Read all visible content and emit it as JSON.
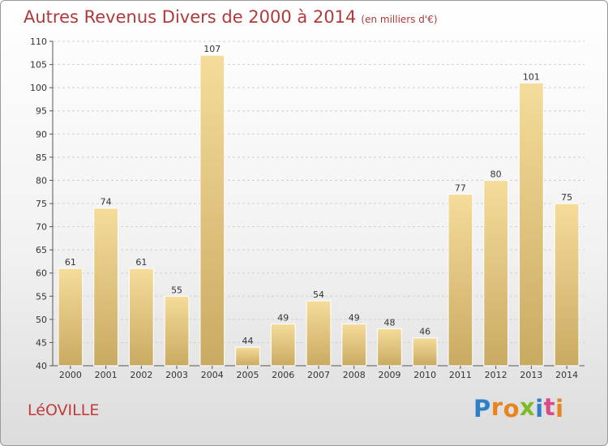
{
  "chart_data": {
    "type": "bar",
    "title": "Autres Revenus Divers de 2000 à 2014",
    "subtitle": "(en milliers d'€)",
    "categories": [
      "2000",
      "2001",
      "2002",
      "2003",
      "2004",
      "2005",
      "2006",
      "2007",
      "2008",
      "2009",
      "2010",
      "2011",
      "2012",
      "2013",
      "2014"
    ],
    "values": [
      61,
      74,
      61,
      55,
      107,
      44,
      49,
      54,
      49,
      48,
      46,
      77,
      80,
      101,
      75
    ],
    "ylim": [
      40,
      110
    ],
    "yticks": [
      40,
      45,
      50,
      55,
      60,
      65,
      70,
      75,
      80,
      85,
      90,
      95,
      100,
      105,
      110
    ],
    "grid": true,
    "colors": {
      "bar_light": "#f5dc9a",
      "bar_dark": "#c9aa62",
      "title": "#b03a3a"
    }
  },
  "footer": {
    "city": "LéOVILLE",
    "logo_letters": [
      {
        "ch": "P",
        "color": "#2f7fc8"
      },
      {
        "ch": "r",
        "color": "#e8841f"
      },
      {
        "ch": "o",
        "color": "#e8841f"
      },
      {
        "ch": "x",
        "color": "#7fb928"
      },
      {
        "ch": "i",
        "color": "#2f7fc8"
      },
      {
        "ch": "t",
        "color": "#d94a8c"
      },
      {
        "ch": "i",
        "color": "#e8841f"
      }
    ]
  }
}
